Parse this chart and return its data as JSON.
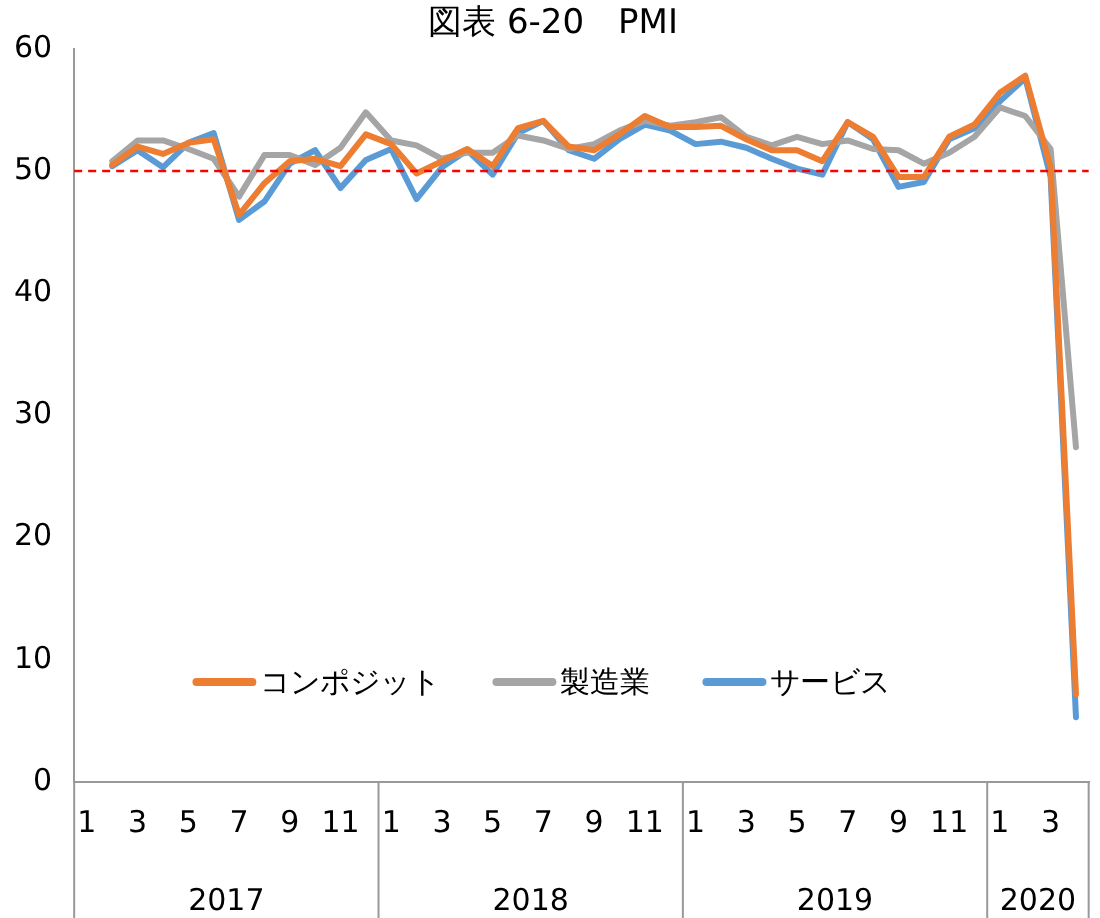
{
  "chart_data": {
    "type": "line",
    "title": "図表 6-20　PMI",
    "categories": [
      "1",
      null,
      "3",
      null,
      "5",
      null,
      "7",
      null,
      "9",
      null,
      "11",
      null,
      "1",
      null,
      "3",
      null,
      "5",
      null,
      "7",
      null,
      "9",
      null,
      "11",
      null,
      "1",
      null,
      "3",
      null,
      "5",
      null,
      "7",
      null,
      "9",
      null,
      "11",
      null,
      "1",
      null,
      "3",
      null
    ],
    "series": [
      {
        "name": "コンポジット",
        "color": "#ed7d31",
        "values": [
          null,
          50.5,
          52.0,
          51.4,
          52.3,
          52.6,
          46.4,
          49.0,
          50.8,
          51.0,
          50.4,
          53.0,
          52.2,
          49.8,
          50.8,
          51.8,
          50.4,
          53.5,
          54.1,
          52.0,
          51.7,
          53.0,
          54.5,
          53.6,
          53.6,
          53.7,
          52.6,
          51.7,
          51.7,
          50.8,
          54.0,
          52.8,
          49.5,
          49.5,
          52.8,
          53.8,
          56.4,
          57.8,
          50.3,
          7.2
        ]
      },
      {
        "name": "製造業",
        "color": "#a5a5a5",
        "values": [
          null,
          50.8,
          52.5,
          52.5,
          51.8,
          51.0,
          47.9,
          51.3,
          51.3,
          50.5,
          51.9,
          54.8,
          52.5,
          52.1,
          51.0,
          51.5,
          51.5,
          52.9,
          52.5,
          51.8,
          52.2,
          53.3,
          54.1,
          53.7,
          54.0,
          54.4,
          52.8,
          52.1,
          52.8,
          52.2,
          52.5,
          51.8,
          51.7,
          50.6,
          51.5,
          52.8,
          55.2,
          54.5,
          51.8,
          27.4
        ]
      },
      {
        "name": "サービス",
        "color": "#5b9bd5",
        "values": [
          null,
          50.4,
          51.7,
          50.3,
          52.3,
          53.1,
          46.0,
          47.5,
          50.6,
          51.7,
          48.6,
          50.9,
          51.8,
          47.7,
          50.3,
          51.7,
          49.7,
          53.1,
          54.1,
          51.7,
          51.0,
          52.6,
          53.8,
          53.3,
          52.2,
          52.4,
          51.9,
          51.0,
          50.2,
          49.7,
          54.0,
          52.6,
          48.7,
          49.1,
          52.6,
          53.5,
          55.7,
          57.6,
          49.5,
          5.3
        ]
      }
    ],
    "ylim": [
      0,
      60
    ],
    "yticks": [
      0,
      10,
      20,
      30,
      40,
      50,
      60
    ],
    "ref_lines": [
      {
        "axis": "y",
        "value": 50,
        "color": "#ff0000",
        "line_style": "dashed"
      }
    ],
    "annotations": [
      "2017",
      "2018",
      "2019",
      "2020"
    ],
    "grid": false,
    "legend": "bottom",
    "marker": "none",
    "line_style": "solid"
  }
}
